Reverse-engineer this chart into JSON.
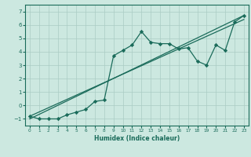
{
  "xlabel": "Humidex (Indice chaleur)",
  "xlim": [
    -0.5,
    23.5
  ],
  "ylim": [
    -1.5,
    7.5
  ],
  "xticks": [
    0,
    1,
    2,
    3,
    4,
    5,
    6,
    7,
    8,
    9,
    10,
    11,
    12,
    13,
    14,
    15,
    16,
    17,
    18,
    19,
    20,
    21,
    22,
    23
  ],
  "yticks": [
    -1,
    0,
    1,
    2,
    3,
    4,
    5,
    6,
    7
  ],
  "bg_color": "#cce8e0",
  "grid_color": "#aaccC4",
  "line_color": "#1a6b5a",
  "jagged_x": [
    0,
    1,
    2,
    3,
    4,
    5,
    6,
    7,
    8,
    9,
    10,
    11,
    12,
    13,
    14,
    15,
    16,
    17,
    18,
    19,
    20,
    21,
    22,
    23
  ],
  "jagged_y": [
    -0.8,
    -1.0,
    -1.0,
    -1.0,
    -0.7,
    -0.5,
    -0.3,
    0.3,
    0.4,
    3.7,
    4.1,
    4.5,
    5.5,
    4.7,
    4.6,
    4.6,
    4.2,
    4.3,
    3.3,
    3.0,
    4.5,
    4.1,
    6.2,
    6.7
  ],
  "line1_x": [
    0,
    23
  ],
  "line1_y": [
    -1.0,
    6.7
  ],
  "line2_x": [
    0,
    23
  ],
  "line2_y": [
    -0.8,
    6.4
  ]
}
